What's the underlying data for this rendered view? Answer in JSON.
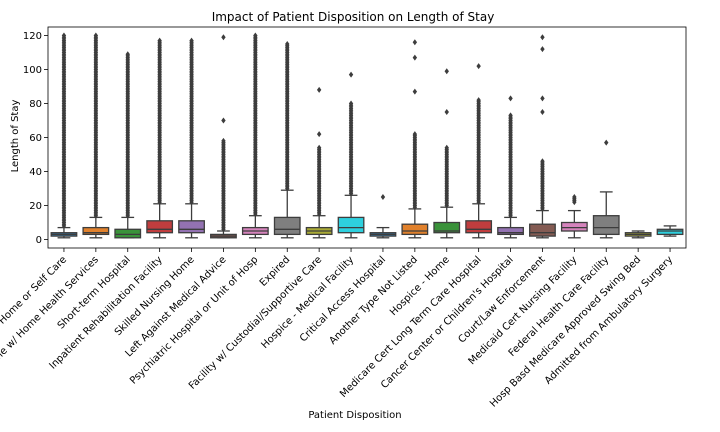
{
  "chart_data": {
    "type": "box",
    "title": "Impact of Patient Disposition on Length of Stay",
    "xlabel": "Patient Disposition",
    "ylabel": "Length of Stay",
    "ylim": [
      -5,
      125
    ],
    "yticks": [
      0,
      20,
      40,
      60,
      80,
      100,
      120
    ],
    "grid": false,
    "categories": [
      "Home or Self Care",
      "Home w/ Home Health Services",
      "Short-term Hospital",
      "Inpatient Rehabilitation Facility",
      "Skilled Nursing Home",
      "Left Against Medical Advice",
      "Psychiatric Hospital or Unit of Hosp",
      "Expired",
      "Facility w/ Custodial/Supportive Care",
      "Hospice - Medical Facility",
      "Critical Access Hospital",
      "Another Type Not Listed",
      "Hospice - Home",
      "Medicare Cert Long Term Care Hospital",
      "Cancer Center or Children's Hospital",
      "Court/Law Enforcement",
      "Medicaid Cert Nursing Facility",
      "Federal Health Care Facility",
      "Hosp Basd Medicare Approved Swing Bed",
      "Admitted from Ambulatory Surgery"
    ],
    "boxes": [
      {
        "color": "#3274a1",
        "whislo": 1,
        "q1": 2,
        "med": 3,
        "q3": 4,
        "whishi": 7,
        "outlier_min": 8,
        "outlier_max": 120
      },
      {
        "color": "#e1812c",
        "whislo": 1,
        "q1": 3,
        "med": 4,
        "q3": 7,
        "whishi": 13,
        "outlier_min": 14,
        "outlier_max": 120
      },
      {
        "color": "#3a923a",
        "whislo": 1,
        "q1": 1,
        "med": 3,
        "q3": 6,
        "whishi": 13,
        "outlier_min": 14,
        "outlier_max": 109
      },
      {
        "color": "#c03d3e",
        "whislo": 1,
        "q1": 4,
        "med": 6,
        "q3": 11,
        "whishi": 21,
        "outlier_min": 22,
        "outlier_max": 117
      },
      {
        "color": "#9372b2",
        "whislo": 1,
        "q1": 4,
        "med": 6,
        "q3": 11,
        "whishi": 21,
        "outlier_min": 22,
        "outlier_max": 117
      },
      {
        "color": "#845b53",
        "whislo": 1,
        "q1": 1,
        "med": 2,
        "q3": 3,
        "whishi": 5,
        "outlier_min": 6,
        "outlier_max": 58,
        "extra_outliers": [
          70,
          119
        ]
      },
      {
        "color": "#d684bd",
        "whislo": 1,
        "q1": 3,
        "med": 5,
        "q3": 7,
        "whishi": 14,
        "outlier_min": 15,
        "outlier_max": 120
      },
      {
        "color": "#7f7f7f",
        "whislo": 1,
        "q1": 3,
        "med": 6,
        "q3": 13,
        "whishi": 29,
        "outlier_min": 30,
        "outlier_max": 115
      },
      {
        "color": "#a9aa35",
        "whislo": 1,
        "q1": 3,
        "med": 5,
        "q3": 7,
        "whishi": 14,
        "outlier_min": 15,
        "outlier_max": 54,
        "extra_outliers": [
          62,
          88
        ]
      },
      {
        "color": "#2ed0de",
        "whislo": 1,
        "q1": 4,
        "med": 7,
        "q3": 13,
        "whishi": 26,
        "outlier_min": 27,
        "outlier_max": 80,
        "extra_outliers": [
          97
        ]
      },
      {
        "color": "#3274a1",
        "whislo": 1,
        "q1": 2,
        "med": 3,
        "q3": 4,
        "whishi": 7,
        "outlier_min": 25,
        "outlier_max": 25
      },
      {
        "color": "#e1812c",
        "whislo": 1,
        "q1": 3,
        "med": 5,
        "q3": 9,
        "whishi": 18,
        "outlier_min": 19,
        "outlier_max": 62,
        "extra_outliers": [
          87,
          107,
          116
        ]
      },
      {
        "color": "#3a923a",
        "whislo": 1,
        "q1": 4,
        "med": 5,
        "q3": 10,
        "whishi": 19,
        "outlier_min": 20,
        "outlier_max": 54,
        "extra_outliers": [
          75,
          99
        ]
      },
      {
        "color": "#c03d3e",
        "whislo": 1,
        "q1": 4,
        "med": 6,
        "q3": 11,
        "whishi": 21,
        "outlier_min": 22,
        "outlier_max": 82,
        "extra_outliers": [
          102
        ]
      },
      {
        "color": "#9372b2",
        "whislo": 1,
        "q1": 3,
        "med": 4,
        "q3": 7,
        "whishi": 13,
        "outlier_min": 14,
        "outlier_max": 73,
        "extra_outliers": [
          83
        ]
      },
      {
        "color": "#845b53",
        "whislo": 1,
        "q1": 2,
        "med": 4,
        "q3": 9,
        "whishi": 17,
        "outlier_min": 18,
        "outlier_max": 46,
        "extra_outliers": [
          75,
          83,
          112,
          119
        ]
      },
      {
        "color": "#d684bd",
        "whislo": 1,
        "q1": 5,
        "med": 7,
        "q3": 10,
        "whishi": 17,
        "outlier_min": 22,
        "outlier_max": 25
      },
      {
        "color": "#7f7f7f",
        "whislo": 1,
        "q1": 3,
        "med": 7,
        "q3": 14,
        "whishi": 28,
        "outlier_min": 57,
        "outlier_max": 57
      },
      {
        "color": "#a9aa35",
        "whislo": 1,
        "q1": 2,
        "med": 3,
        "q3": 4,
        "whishi": 5,
        "outlier_min": null,
        "outlier_max": null
      },
      {
        "color": "#2ed0de",
        "whislo": 2,
        "q1": 3,
        "med": 5,
        "q3": 6,
        "whishi": 8,
        "outlier_min": null,
        "outlier_max": null
      }
    ]
  }
}
